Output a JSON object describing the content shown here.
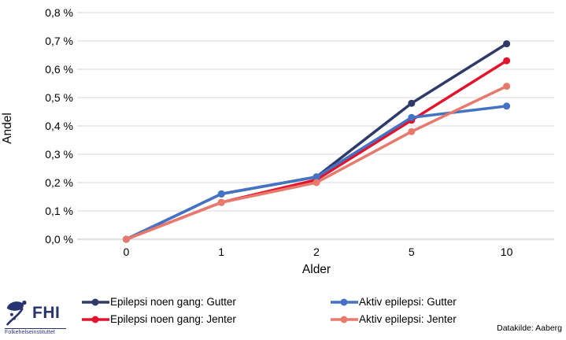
{
  "branding": {
    "logo_text": "FHI",
    "logo_subtext": "Folkehelseinstituttet"
  },
  "source_note": "Datakilde: Aaberg",
  "colors": {
    "grid": "#D9D9D9",
    "axis_line": "#BFBFBF",
    "text": "#000000",
    "logo": "#283371"
  },
  "chart_data": {
    "type": "line",
    "title": "",
    "xlabel": "Alder",
    "ylabel": "Andel",
    "categories": [
      "0",
      "1",
      "2",
      "5",
      "10"
    ],
    "ylim": [
      0,
      0.8
    ],
    "ytick_step": 0.1,
    "ytick_labels": [
      "0,0 %",
      "0,1 %",
      "0,2 %",
      "0,3 %",
      "0,4 %",
      "0,5 %",
      "0,6 %",
      "0,7 %",
      "0,8 %"
    ],
    "y_unit": "percent",
    "grid": "horizontal",
    "legend_position": "bottom",
    "series": [
      {
        "name": "Epilepsi noen gang: Gutter",
        "color": "#2E3A67",
        "values": [
          0.0,
          0.16,
          0.22,
          0.48,
          0.69
        ]
      },
      {
        "name": "Epilepsi noen gang: Jenter",
        "color": "#E2142D",
        "values": [
          0.0,
          0.13,
          0.21,
          0.42,
          0.63
        ]
      },
      {
        "name": "Aktiv epilepsi: Gutter",
        "color": "#4472C4",
        "values": [
          0.0,
          0.16,
          0.22,
          0.43,
          0.47
        ]
      },
      {
        "name": "Aktiv epilepsi: Jenter",
        "color": "#E8796D",
        "values": [
          0.0,
          0.13,
          0.2,
          0.38,
          0.54
        ]
      }
    ]
  }
}
